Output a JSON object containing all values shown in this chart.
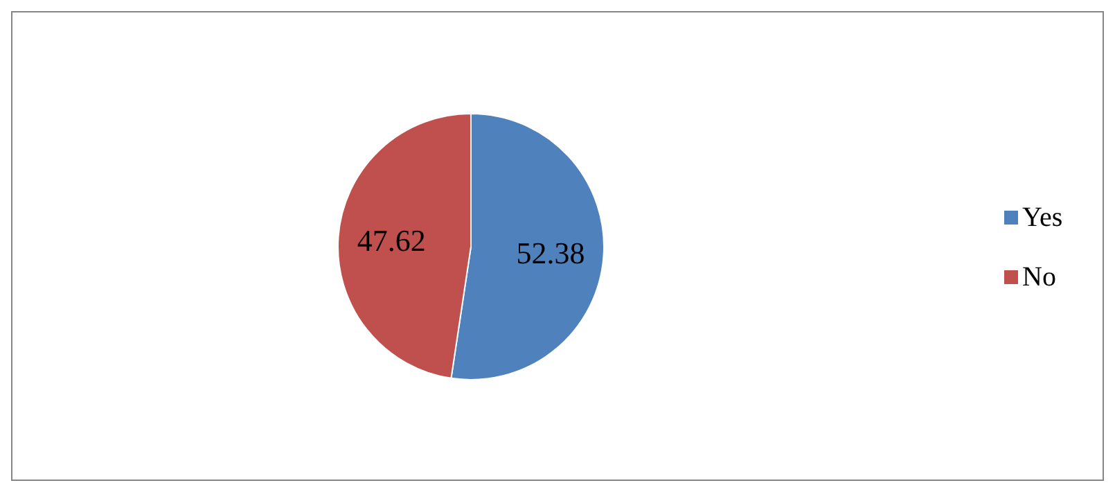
{
  "chart_data": {
    "type": "pie",
    "categories": [
      "Yes",
      "No"
    ],
    "values": [
      52.38,
      47.62
    ],
    "colors": [
      "#4f81bd",
      "#c0504d"
    ],
    "data_labels": true,
    "legend": "right"
  }
}
